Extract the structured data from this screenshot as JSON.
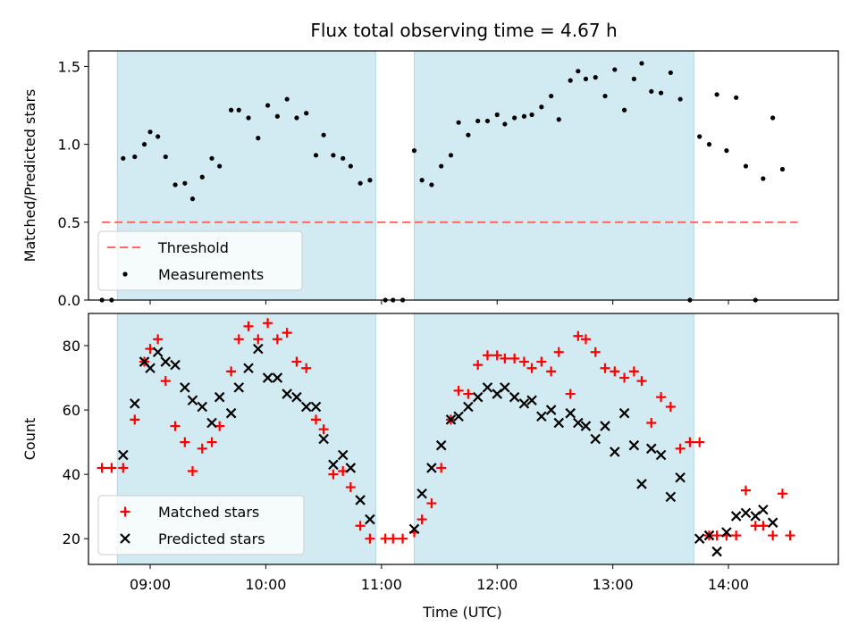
{
  "title": "Flux total observing time = 4.67 h",
  "colors": {
    "shade": "#add8e6",
    "threshold": "#ff6666",
    "measurement": "#000000",
    "matched": "#ff0000",
    "predicted": "#000000"
  },
  "chart_data": [
    {
      "type": "scatter",
      "ylabel": "Matched/Predicted stars",
      "ylim": [
        0,
        1.6
      ],
      "yticks": [
        "0.0",
        "0.5",
        "1.0",
        "1.5"
      ],
      "xlim": [
        "08:28",
        "14:57"
      ],
      "shaded_intervals": [
        [
          "08:43",
          "10:57"
        ],
        [
          "11:17",
          "13:42"
        ]
      ],
      "threshold": {
        "name": "Threshold",
        "y": 0.5,
        "x_range": [
          "08:35",
          "14:36"
        ]
      },
      "legend": {
        "placement": "lower left",
        "entries": [
          "Threshold",
          "Measurements"
        ]
      },
      "series": [
        {
          "name": "Measurements",
          "marker": "dot",
          "points": [
            [
              "08:35",
              0.0
            ],
            [
              "08:40",
              0.0
            ],
            [
              "08:46",
              0.91
            ],
            [
              "08:52",
              0.92
            ],
            [
              "08:57",
              1.0
            ],
            [
              "09:00",
              1.08
            ],
            [
              "09:04",
              1.05
            ],
            [
              "09:08",
              0.92
            ],
            [
              "09:13",
              0.74
            ],
            [
              "09:18",
              0.75
            ],
            [
              "09:22",
              0.65
            ],
            [
              "09:27",
              0.79
            ],
            [
              "09:32",
              0.91
            ],
            [
              "09:36",
              0.86
            ],
            [
              "09:42",
              1.22
            ],
            [
              "09:46",
              1.22
            ],
            [
              "09:51",
              1.17
            ],
            [
              "09:56",
              1.04
            ],
            [
              "10:01",
              1.25
            ],
            [
              "10:06",
              1.18
            ],
            [
              "10:11",
              1.29
            ],
            [
              "10:16",
              1.17
            ],
            [
              "10:21",
              1.2
            ],
            [
              "10:26",
              0.93
            ],
            [
              "10:30",
              1.06
            ],
            [
              "10:35",
              0.93
            ],
            [
              "10:40",
              0.91
            ],
            [
              "10:44",
              0.86
            ],
            [
              "10:49",
              0.75
            ],
            [
              "10:54",
              0.77
            ],
            [
              "11:02",
              0.0
            ],
            [
              "11:06",
              0.0
            ],
            [
              "11:11",
              0.0
            ],
            [
              "11:17",
              0.96
            ],
            [
              "11:21",
              0.77
            ],
            [
              "11:26",
              0.74
            ],
            [
              "11:31",
              0.86
            ],
            [
              "11:36",
              0.93
            ],
            [
              "11:40",
              1.14
            ],
            [
              "11:45",
              1.06
            ],
            [
              "11:50",
              1.15
            ],
            [
              "11:55",
              1.15
            ],
            [
              "12:00",
              1.19
            ],
            [
              "12:04",
              1.13
            ],
            [
              "12:09",
              1.17
            ],
            [
              "12:14",
              1.18
            ],
            [
              "12:18",
              1.19
            ],
            [
              "12:23",
              1.24
            ],
            [
              "12:28",
              1.31
            ],
            [
              "12:32",
              1.16
            ],
            [
              "12:38",
              1.41
            ],
            [
              "12:42",
              1.47
            ],
            [
              "12:46",
              1.42
            ],
            [
              "12:51",
              1.43
            ],
            [
              "12:56",
              1.31
            ],
            [
              "13:01",
              1.48
            ],
            [
              "13:06",
              1.22
            ],
            [
              "13:11",
              1.42
            ],
            [
              "13:15",
              1.52
            ],
            [
              "13:20",
              1.34
            ],
            [
              "13:25",
              1.33
            ],
            [
              "13:30",
              1.46
            ],
            [
              "13:35",
              1.29
            ],
            [
              "13:40",
              0.0
            ],
            [
              "13:45",
              1.05
            ],
            [
              "13:50",
              1.0
            ],
            [
              "13:54",
              1.32
            ],
            [
              "13:59",
              0.96
            ],
            [
              "14:04",
              1.3
            ],
            [
              "14:09",
              0.86
            ],
            [
              "14:14",
              0.0
            ],
            [
              "14:18",
              0.78
            ],
            [
              "14:23",
              1.17
            ],
            [
              "14:28",
              0.84
            ]
          ]
        }
      ]
    },
    {
      "type": "scatter",
      "xlabel": "Time (UTC)",
      "ylabel": "Count",
      "ylim": [
        12,
        90
      ],
      "yticks": [
        "20",
        "40",
        "60",
        "80"
      ],
      "xlim": [
        "08:28",
        "14:57"
      ],
      "xticks": [
        "09:00",
        "10:00",
        "11:00",
        "12:00",
        "13:00",
        "14:00"
      ],
      "shaded_intervals": [
        [
          "08:43",
          "10:57"
        ],
        [
          "11:17",
          "13:42"
        ]
      ],
      "legend": {
        "placement": "lower left",
        "entries": [
          "Matched stars",
          "Predicted stars"
        ]
      },
      "series": [
        {
          "name": "Matched stars",
          "marker": "plus",
          "points": [
            [
              "08:35",
              42
            ],
            [
              "08:40",
              42
            ],
            [
              "08:46",
              42
            ],
            [
              "08:52",
              57
            ],
            [
              "08:57",
              75
            ],
            [
              "09:00",
              79
            ],
            [
              "09:04",
              82
            ],
            [
              "09:08",
              69
            ],
            [
              "09:13",
              55
            ],
            [
              "09:18",
              50
            ],
            [
              "09:22",
              41
            ],
            [
              "09:27",
              48
            ],
            [
              "09:32",
              50
            ],
            [
              "09:36",
              55
            ],
            [
              "09:42",
              72
            ],
            [
              "09:46",
              82
            ],
            [
              "09:51",
              86
            ],
            [
              "09:56",
              82
            ],
            [
              "10:01",
              87
            ],
            [
              "10:06",
              82
            ],
            [
              "10:11",
              84
            ],
            [
              "10:16",
              75
            ],
            [
              "10:21",
              73
            ],
            [
              "10:26",
              57
            ],
            [
              "10:30",
              54
            ],
            [
              "10:35",
              40
            ],
            [
              "10:40",
              41
            ],
            [
              "10:44",
              36
            ],
            [
              "10:49",
              24
            ],
            [
              "10:54",
              20
            ],
            [
              "11:02",
              20
            ],
            [
              "11:06",
              20
            ],
            [
              "11:11",
              20
            ],
            [
              "11:17",
              22
            ],
            [
              "11:21",
              26
            ],
            [
              "11:26",
              31
            ],
            [
              "11:31",
              42
            ],
            [
              "11:36",
              57
            ],
            [
              "11:40",
              66
            ],
            [
              "11:45",
              65
            ],
            [
              "11:50",
              74
            ],
            [
              "11:55",
              77
            ],
            [
              "12:00",
              77
            ],
            [
              "12:04",
              76
            ],
            [
              "12:09",
              76
            ],
            [
              "12:14",
              75
            ],
            [
              "12:18",
              73
            ],
            [
              "12:23",
              75
            ],
            [
              "12:28",
              72
            ],
            [
              "12:32",
              78
            ],
            [
              "12:38",
              65
            ],
            [
              "12:42",
              83
            ],
            [
              "12:46",
              82
            ],
            [
              "12:51",
              78
            ],
            [
              "12:56",
              73
            ],
            [
              "13:01",
              72
            ],
            [
              "13:06",
              70
            ],
            [
              "13:11",
              72
            ],
            [
              "13:15",
              69
            ],
            [
              "13:20",
              56
            ],
            [
              "13:25",
              64
            ],
            [
              "13:30",
              61
            ],
            [
              "13:35",
              48
            ],
            [
              "13:40",
              50
            ],
            [
              "13:45",
              50
            ],
            [
              "13:50",
              21
            ],
            [
              "13:54",
              21
            ],
            [
              "13:59",
              21
            ],
            [
              "14:04",
              21
            ],
            [
              "14:09",
              35
            ],
            [
              "14:14",
              24
            ],
            [
              "14:18",
              24
            ],
            [
              "14:23",
              21
            ],
            [
              "14:28",
              34
            ],
            [
              "14:32",
              21
            ]
          ]
        },
        {
          "name": "Predicted stars",
          "marker": "x",
          "points": [
            [
              "08:46",
              46
            ],
            [
              "08:52",
              62
            ],
            [
              "08:57",
              75
            ],
            [
              "09:00",
              73
            ],
            [
              "09:04",
              78
            ],
            [
              "09:08",
              75
            ],
            [
              "09:13",
              74
            ],
            [
              "09:18",
              67
            ],
            [
              "09:22",
              63
            ],
            [
              "09:27",
              61
            ],
            [
              "09:32",
              56
            ],
            [
              "09:36",
              64
            ],
            [
              "09:42",
              59
            ],
            [
              "09:46",
              67
            ],
            [
              "09:51",
              73
            ],
            [
              "09:56",
              79
            ],
            [
              "10:01",
              70
            ],
            [
              "10:06",
              70
            ],
            [
              "10:11",
              65
            ],
            [
              "10:16",
              64
            ],
            [
              "10:21",
              61
            ],
            [
              "10:26",
              61
            ],
            [
              "10:30",
              51
            ],
            [
              "10:35",
              43
            ],
            [
              "10:40",
              46
            ],
            [
              "10:44",
              42
            ],
            [
              "10:49",
              32
            ],
            [
              "10:54",
              26
            ],
            [
              "11:17",
              23
            ],
            [
              "11:21",
              34
            ],
            [
              "11:26",
              42
            ],
            [
              "11:31",
              49
            ],
            [
              "11:36",
              57
            ],
            [
              "11:40",
              58
            ],
            [
              "11:45",
              61
            ],
            [
              "11:50",
              64
            ],
            [
              "11:55",
              67
            ],
            [
              "12:00",
              65
            ],
            [
              "12:04",
              67
            ],
            [
              "12:09",
              64
            ],
            [
              "12:14",
              62
            ],
            [
              "12:18",
              63
            ],
            [
              "12:23",
              58
            ],
            [
              "12:28",
              60
            ],
            [
              "12:32",
              56
            ],
            [
              "12:38",
              59
            ],
            [
              "12:42",
              56
            ],
            [
              "12:46",
              55
            ],
            [
              "12:51",
              51
            ],
            [
              "12:56",
              55
            ],
            [
              "13:01",
              47
            ],
            [
              "13:06",
              59
            ],
            [
              "13:11",
              49
            ],
            [
              "13:15",
              37
            ],
            [
              "13:20",
              48
            ],
            [
              "13:25",
              46
            ],
            [
              "13:30",
              33
            ],
            [
              "13:35",
              39
            ],
            [
              "13:45",
              20
            ],
            [
              "13:50",
              21
            ],
            [
              "13:54",
              16
            ],
            [
              "13:59",
              22
            ],
            [
              "14:04",
              27
            ],
            [
              "14:09",
              28
            ],
            [
              "14:14",
              27
            ],
            [
              "14:18",
              29
            ],
            [
              "14:23",
              25
            ]
          ]
        }
      ]
    }
  ]
}
